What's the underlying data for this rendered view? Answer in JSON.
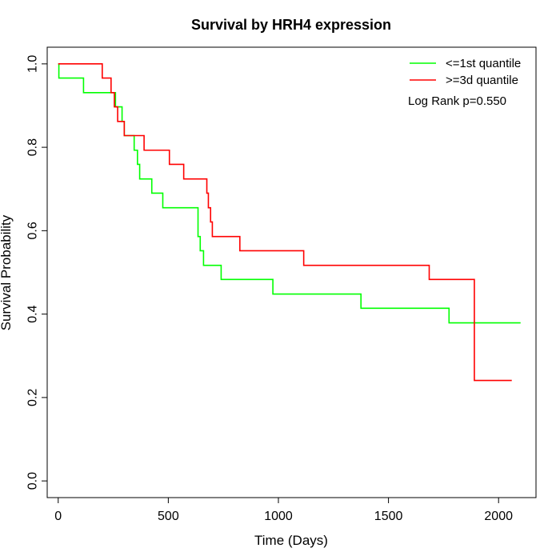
{
  "chart_data": {
    "type": "line",
    "title": "Survival by HRH4 expression",
    "xlabel": "Time (Days)",
    "ylabel": "Survival Probability",
    "xlim": [
      -50,
      2170
    ],
    "ylim": [
      -0.04,
      1.04
    ],
    "x_ticks": [
      0,
      500,
      1000,
      1500,
      2000
    ],
    "y_ticks": [
      0.0,
      0.2,
      0.4,
      0.6,
      0.8,
      1.0
    ],
    "y_tick_labels": [
      "0.0",
      "0.2",
      "0.4",
      "0.6",
      "0.8",
      "1.0"
    ],
    "grid": false,
    "legend_position": "top-right",
    "annotation": "Log Rank p=0.550",
    "series": [
      {
        "name": "<=1st quantile",
        "color": "#00ff00",
        "step_points": [
          [
            0,
            1.0
          ],
          [
            3,
            0.966
          ],
          [
            115,
            0.931
          ],
          [
            260,
            0.897
          ],
          [
            290,
            0.862
          ],
          [
            300,
            0.828
          ],
          [
            345,
            0.793
          ],
          [
            360,
            0.759
          ],
          [
            370,
            0.724
          ],
          [
            425,
            0.69
          ],
          [
            475,
            0.655
          ],
          [
            635,
            0.586
          ],
          [
            645,
            0.552
          ],
          [
            660,
            0.517
          ],
          [
            740,
            0.483
          ],
          [
            975,
            0.448
          ],
          [
            1375,
            0.414
          ],
          [
            1775,
            0.379
          ],
          [
            2100,
            0.379
          ]
        ]
      },
      {
        "name": ">=3d quantile",
        "color": "#ff0000",
        "step_points": [
          [
            0,
            1.0
          ],
          [
            200,
            0.966
          ],
          [
            240,
            0.931
          ],
          [
            255,
            0.897
          ],
          [
            270,
            0.862
          ],
          [
            300,
            0.828
          ],
          [
            390,
            0.793
          ],
          [
            505,
            0.759
          ],
          [
            570,
            0.724
          ],
          [
            675,
            0.69
          ],
          [
            682,
            0.655
          ],
          [
            692,
            0.621
          ],
          [
            700,
            0.586
          ],
          [
            825,
            0.552
          ],
          [
            1115,
            0.517
          ],
          [
            1685,
            0.483
          ],
          [
            1890,
            0.241
          ],
          [
            2060,
            0.241
          ]
        ]
      }
    ]
  }
}
